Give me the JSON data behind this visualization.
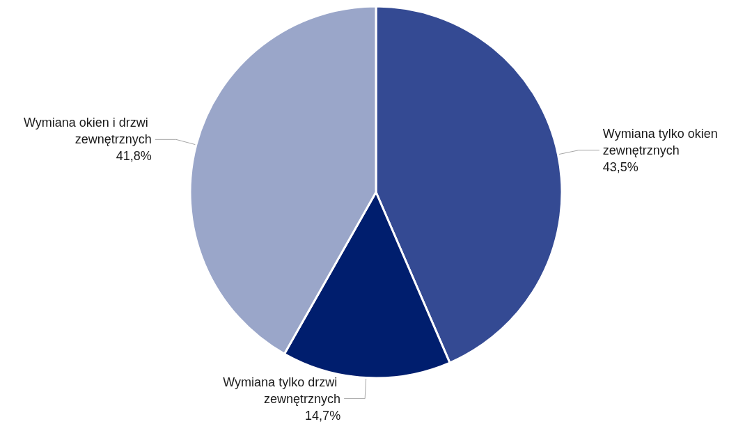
{
  "chart_data": {
    "type": "pie",
    "categories": [
      "Wymiana tylko okien zewnętrznych",
      "Wymiana tylko drzwi zewnętrznych",
      "Wymiana okien i drzwi zewnętrznych"
    ],
    "values": [
      43.5,
      14.7,
      41.8
    ],
    "value_labels": [
      "43,5%",
      "14,7%",
      "41,8%"
    ],
    "colors": [
      "#344a93",
      "#001e6e",
      "#9aa6c9"
    ],
    "legend": false
  }
}
